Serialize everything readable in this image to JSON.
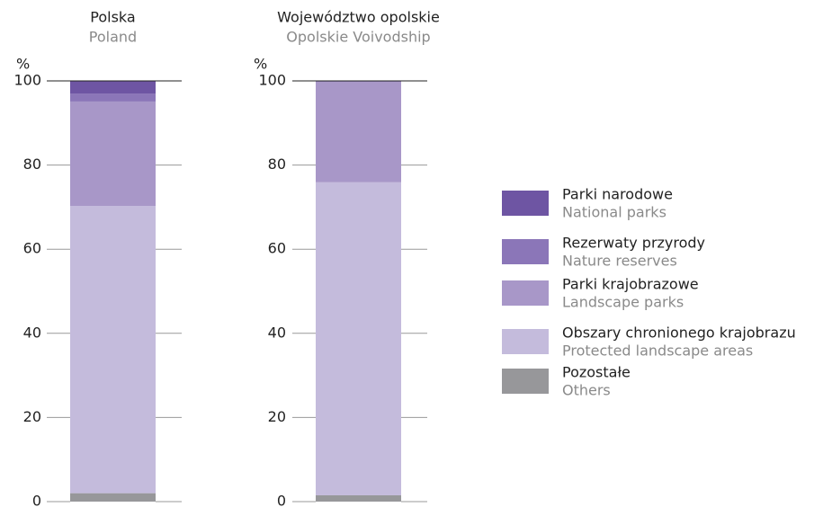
{
  "chart_data": [
    {
      "type": "stacked_bar",
      "title": "Polska",
      "subtitle": "Poland",
      "y_label": "%",
      "ylim": [
        0,
        100
      ],
      "yticks": [
        0,
        20,
        40,
        60,
        80,
        100
      ],
      "grid": true,
      "series": [
        {
          "name": "Parki narodowe",
          "name_en": "National parks",
          "color": "#6e55a3",
          "values": [
            3.0
          ]
        },
        {
          "name": "Rezerwaty przyrody",
          "name_en": "Nature reserves",
          "color": "#8b76b8",
          "values": [
            1.9
          ]
        },
        {
          "name": "Parki krajobrazowe",
          "name_en": "Landscape parks",
          "color": "#a897c8",
          "values": [
            24.8
          ]
        },
        {
          "name": "Obszary chronionego krajobrazu",
          "name_en": "Protected landscape areas",
          "color": "#c4bbdc",
          "values": [
            68.3
          ]
        },
        {
          "name": "Pozostałe",
          "name_en": "Others",
          "color": "#97979a",
          "values": [
            2.0
          ]
        }
      ]
    },
    {
      "type": "stacked_bar",
      "title": "Województwo opolskie",
      "subtitle": "Opolskie Voivodship",
      "y_label": "%",
      "ylim": [
        0,
        100
      ],
      "yticks": [
        0,
        20,
        40,
        60,
        80,
        100
      ],
      "grid": true,
      "series": [
        {
          "name": "Parki narodowe",
          "name_en": "National parks",
          "color": "#6e55a3",
          "values": [
            0
          ]
        },
        {
          "name": "Rezerwaty przyrody",
          "name_en": "Nature reserves",
          "color": "#8b76b8",
          "values": [
            0.2
          ]
        },
        {
          "name": "Parki krajobrazowe",
          "name_en": "Landscape parks",
          "color": "#a897c8",
          "values": [
            23.9
          ]
        },
        {
          "name": "Obszary chronionego krajobrazu",
          "name_en": "Protected landscape areas",
          "color": "#c4bbdc",
          "values": [
            74.4
          ]
        },
        {
          "name": "Pozostałe",
          "name_en": "Others",
          "color": "#97979a",
          "values": [
            1.5
          ]
        }
      ]
    }
  ]
}
